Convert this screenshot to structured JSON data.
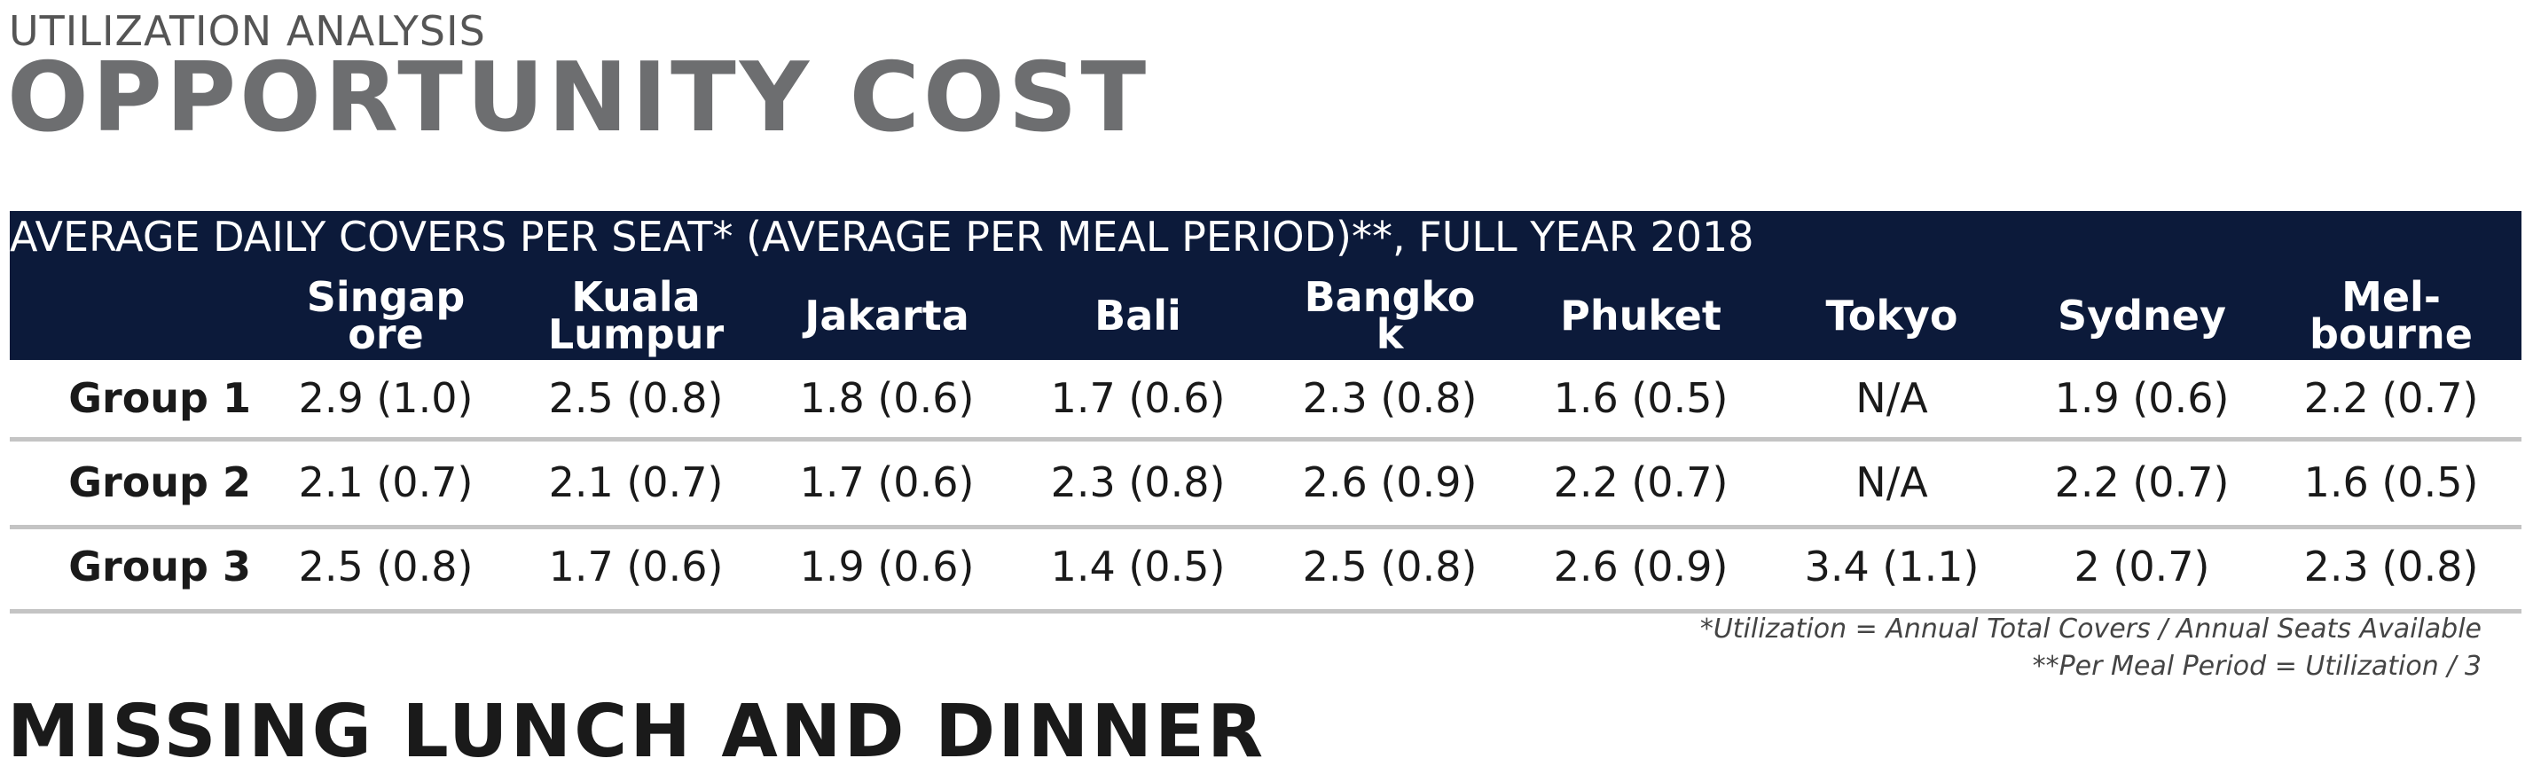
{
  "header": {
    "subtitle": "UTILIZATION ANALYSIS",
    "title": "OPPORTUNITY COST"
  },
  "table": {
    "caption": "AVERAGE DAILY COVERS PER SEAT* (AVERAGE PER MEAL PERIOD)**, FULL YEAR 2018",
    "columns": [
      "Singapore",
      "Kuala Lumpur",
      "Jakarta",
      "Bali",
      "Bangkok",
      "Phuket",
      "Tokyo",
      "Sydney",
      "Mel-bourne"
    ],
    "rows": [
      {
        "label": "Group 1",
        "cells": [
          "2.9 (1.0)",
          "2.5 (0.8)",
          "1.8 (0.6)",
          "1.7 (0.6)",
          "2.3 (0.8)",
          "1.6 (0.5)",
          "N/A",
          "1.9 (0.6)",
          "2.2 (0.7)"
        ]
      },
      {
        "label": "Group 2",
        "cells": [
          "2.1 (0.7)",
          "2.1 (0.7)",
          "1.7 (0.6)",
          "2.3 (0.8)",
          "2.6 (0.9)",
          "2.2 (0.7)",
          "N/A",
          "2.2 (0.7)",
          "1.6 (0.5)"
        ]
      },
      {
        "label": "Group 3",
        "cells": [
          "2.5 (0.8)",
          "1.7 (0.6)",
          "1.9 (0.6)",
          "1.4 (0.5)",
          "2.5 (0.8)",
          "2.6 (0.9)",
          "3.4 (1.1)",
          "2 (0.7)",
          "2.3 (0.8)"
        ]
      }
    ],
    "footnotes": [
      "*Utilization = Annual Total Covers / Annual Seats Available",
      "**Per Meal Period = Utilization / 3"
    ]
  },
  "next_section": {
    "title": "MISSING LUNCH AND DINNER"
  }
}
